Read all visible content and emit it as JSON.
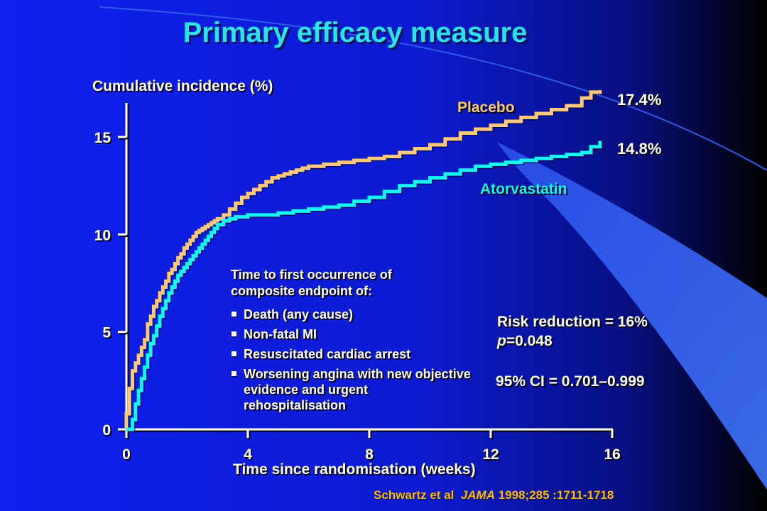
{
  "slide": {
    "title": "Primary efficacy measure",
    "definition_intro": "Time to first occurrence of composite endpoint of:",
    "definition_items": [
      "Death (any cause)",
      "Non-fatal MI",
      "Resuscitated cardiac arrest",
      "Worsening angina with new objective evidence and urgent rehospitalisation"
    ],
    "risk_reduction": "Risk reduction = 16%",
    "p_label": "p",
    "p_value": "=0.048",
    "ci": "95% CI = 0.701–0.999",
    "citation": {
      "authors": "Schwartz et al",
      "journal": "JAMA",
      "ref": "1998;285 :1711-1718"
    }
  },
  "colors": {
    "background_left": "#1020ee",
    "background_right": "#000000",
    "swoosh": "#3e6ff0",
    "title": "#2fe0ee",
    "placebo": "#fbc87e",
    "atorvastatin": "#19f4f4",
    "axes": "#ffffff",
    "citation": "#f3b534"
  },
  "chart_data": {
    "type": "line",
    "step": true,
    "xlabel": "Time since randomisation (weeks)",
    "ylabel": "Cumulative incidence (%)",
    "xlim": [
      0,
      16
    ],
    "ylim": [
      0,
      17
    ],
    "xticks": [
      0,
      4,
      8,
      12,
      16
    ],
    "yticks": [
      0,
      5,
      10,
      15
    ],
    "grid": false,
    "series": [
      {
        "name": "Placebo",
        "color": "#fbc87e",
        "end_label": "17.4%",
        "x": [
          0,
          0.1,
          0.2,
          0.3,
          0.4,
          0.5,
          0.6,
          0.7,
          0.8,
          0.9,
          1.0,
          1.1,
          1.2,
          1.3,
          1.4,
          1.5,
          1.6,
          1.7,
          1.8,
          1.9,
          2.0,
          2.1,
          2.2,
          2.3,
          2.4,
          2.5,
          2.6,
          2.7,
          2.8,
          2.9,
          3.0,
          3.2,
          3.4,
          3.6,
          3.8,
          4.0,
          4.2,
          4.4,
          4.6,
          4.8,
          5.0,
          5.2,
          5.4,
          5.6,
          5.8,
          6.0,
          6.5,
          7.0,
          7.5,
          8.0,
          8.5,
          9.0,
          9.5,
          10.0,
          10.5,
          11.0,
          11.5,
          12.0,
          12.5,
          13.0,
          13.5,
          14.0,
          14.5,
          15.0,
          15.3,
          15.6
        ],
        "y": [
          0.8,
          2.1,
          3.0,
          3.4,
          3.8,
          4.2,
          4.6,
          5.4,
          5.8,
          6.3,
          6.6,
          7.0,
          7.3,
          7.6,
          8.0,
          8.2,
          8.5,
          8.8,
          9.0,
          9.3,
          9.5,
          9.7,
          9.9,
          10.1,
          10.2,
          10.3,
          10.4,
          10.5,
          10.6,
          10.7,
          10.8,
          11.0,
          11.3,
          11.6,
          11.9,
          12.1,
          12.3,
          12.5,
          12.7,
          12.9,
          13.0,
          13.1,
          13.2,
          13.3,
          13.4,
          13.5,
          13.6,
          13.7,
          13.8,
          13.9,
          14.0,
          14.2,
          14.4,
          14.6,
          14.9,
          15.2,
          15.4,
          15.6,
          15.8,
          16.0,
          16.2,
          16.4,
          16.6,
          17.0,
          17.3,
          17.4
        ]
      },
      {
        "name": "Atorvastatin",
        "color": "#19f4f4",
        "end_label": "14.8%",
        "x": [
          0,
          0.2,
          0.3,
          0.4,
          0.5,
          0.6,
          0.7,
          0.8,
          0.9,
          1.0,
          1.1,
          1.2,
          1.3,
          1.4,
          1.5,
          1.6,
          1.7,
          1.8,
          1.9,
          2.0,
          2.1,
          2.2,
          2.3,
          2.4,
          2.5,
          2.6,
          2.7,
          2.8,
          2.9,
          3.0,
          3.2,
          3.4,
          3.6,
          3.8,
          4.0,
          4.5,
          5.0,
          5.5,
          6.0,
          6.5,
          7.0,
          7.5,
          8.0,
          8.5,
          9.0,
          9.5,
          10.0,
          10.5,
          11.0,
          11.5,
          12.0,
          12.5,
          13.0,
          13.5,
          14.0,
          14.5,
          15.0,
          15.3,
          15.6
        ],
        "y": [
          0,
          0.5,
          1.3,
          2.0,
          2.6,
          3.2,
          3.8,
          4.4,
          4.8,
          5.3,
          5.8,
          6.2,
          6.6,
          7.0,
          7.3,
          7.6,
          7.9,
          8.1,
          8.3,
          8.5,
          8.7,
          8.9,
          9.1,
          9.3,
          9.5,
          9.7,
          9.9,
          10.1,
          10.3,
          10.5,
          10.7,
          10.8,
          10.9,
          10.9,
          11.0,
          11.0,
          11.1,
          11.2,
          11.3,
          11.4,
          11.5,
          11.7,
          11.9,
          12.2,
          12.5,
          12.7,
          12.9,
          13.1,
          13.3,
          13.5,
          13.6,
          13.7,
          13.8,
          13.9,
          14.0,
          14.1,
          14.2,
          14.5,
          14.8
        ]
      }
    ]
  }
}
